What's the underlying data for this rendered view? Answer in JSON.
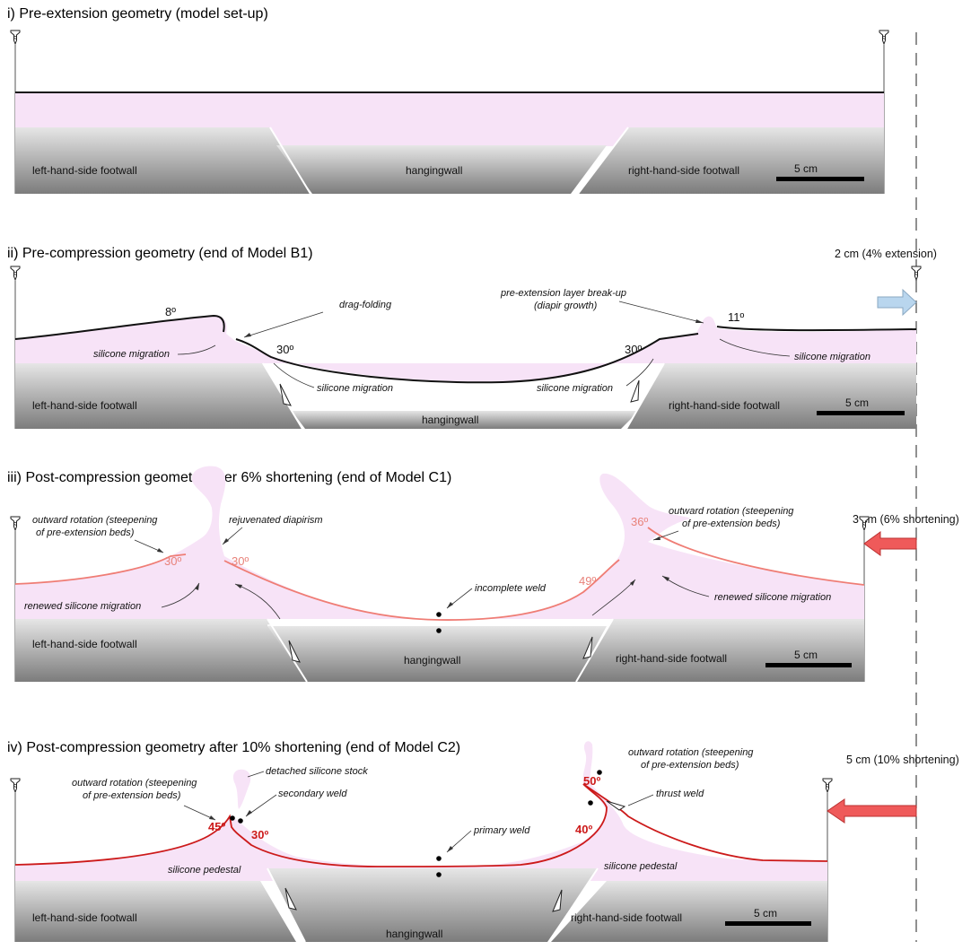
{
  "panels": [
    {
      "title": "i) Pre-extension geometry (model set-up)",
      "left_footwall": "left-hand-side footwall",
      "hangingwall": "hangingwall",
      "right_footwall": "right-hand-side footwall",
      "scale": "5 cm"
    },
    {
      "title": "ii) Pre-compression geometry (end of Model B1)",
      "left_footwall": "left-hand-side footwall",
      "hangingwall": "hangingwall",
      "right_footwall": "right-hand-side footwall",
      "scale": "5 cm",
      "boundary_note": "2 cm (4% extension)",
      "angles": [
        "8º",
        "30º",
        "30º",
        "11º"
      ],
      "annotations": {
        "drag_folding": "drag-folding",
        "breakup_1": "pre-extension layer break-up",
        "breakup_2": "(diapir growth)",
        "migration": "silicone migration"
      }
    },
    {
      "title": "iii) Post-compression geometry after 6% shortening (end of Model C1)",
      "left_footwall": "left-hand-side footwall",
      "hangingwall": "hangingwall",
      "right_footwall": "right-hand-side footwall",
      "scale": "5 cm",
      "boundary_note": "3 cm (6% shortening)",
      "angles": [
        "30º",
        "30º",
        "49º",
        "36º"
      ],
      "annotations": {
        "rotation_1": "outward rotation (steepening",
        "rotation_2": "of pre-extension beds)",
        "diapirism": "rejuvenated diapirism",
        "incomplete_weld": "incomplete weld",
        "renewed_migration": "renewed silicone migration"
      }
    },
    {
      "title": "iv) Post-compression geometry after 10% shortening (end of Model C2)",
      "left_footwall": "left-hand-side footwall",
      "hangingwall": "hangingwall",
      "right_footwall": "right-hand-side footwall",
      "scale": "5 cm",
      "boundary_note": "5 cm (10% shortening)",
      "angles": [
        "45º",
        "30º",
        "50º",
        "40º"
      ],
      "annotations": {
        "rotation_1": "outward rotation (steepening",
        "rotation_2": "of pre-extension beds)",
        "stock": "detached silicone stock",
        "secondary_weld": "secondary weld",
        "primary_weld": "primary weld",
        "thrust_weld": "thrust weld",
        "pedestal": "silicone pedestal"
      }
    }
  ],
  "colors": {
    "silicone": "#f7e3f7",
    "bed_black": "#111111",
    "bed_salmon": "#ef7d75",
    "bed_red": "#d01818",
    "extension_arrow": "#b9d6ee",
    "shortening_arrow": "#ef5a5a"
  }
}
